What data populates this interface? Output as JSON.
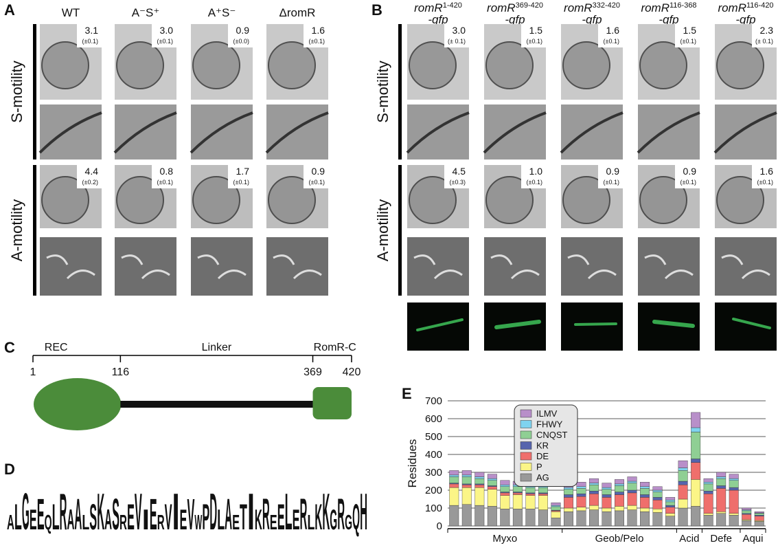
{
  "panel_a": {
    "label": "A",
    "columns": [
      "WT",
      "A⁻S⁺",
      "A⁺S⁻",
      "ΔromR"
    ],
    "rows": [
      {
        "label": "S-motility",
        "values": [
          "3.1",
          "3.0",
          "0.9",
          "1.6"
        ],
        "errors": [
          "(±0.1)",
          "(±0.1)",
          "(±0.0)",
          "(±0.1)"
        ]
      },
      {
        "label": "A-motility",
        "values": [
          "4.4",
          "0.8",
          "1.7",
          "0.9"
        ],
        "errors": [
          "(±0.2)",
          "(±0.1)",
          "(±0.1)",
          "(±0.1)"
        ]
      }
    ]
  },
  "panel_b": {
    "label": "B",
    "columns": [
      {
        "gene": "romR",
        "range": "1-420",
        "suffix": "-gfp"
      },
      {
        "gene": "romR",
        "range": "369-420",
        "suffix": "-gfp"
      },
      {
        "gene": "romR",
        "range": "332-420",
        "suffix": "-gfp"
      },
      {
        "gene": "romR",
        "range": "116-368",
        "suffix": "-gfp"
      },
      {
        "gene": "romR",
        "range": "116-420",
        "suffix": "-gfp"
      }
    ],
    "rows": [
      {
        "label": "S-motility",
        "values": [
          "3.0",
          "1.5",
          "1.6",
          "1.5",
          "2.3"
        ],
        "errors": [
          "(± 0.1)",
          "(±0.1)",
          "(±0.1)",
          "(±0.1)",
          "(± 0.1)"
        ]
      },
      {
        "label": "A-motility",
        "values": [
          "4.5",
          "1.0",
          "0.9",
          "0.9",
          "1.6"
        ],
        "errors": [
          "(±0.3)",
          "(±0.1)",
          "(±0.1)",
          "(±0.1)",
          "(±0.1)"
        ]
      }
    ]
  },
  "panel_c": {
    "label": "C",
    "domains": [
      "REC",
      "Linker",
      "RomR-C"
    ],
    "positions": [
      1,
      116,
      369,
      420
    ]
  },
  "panel_d": {
    "label": "D",
    "logo": "ALGEEQLRAALSKASREVIERVIEVWPDLAETIKREELERLKKGRGQH"
  },
  "chart_data": {
    "type": "bar",
    "stacked": true,
    "label": "E",
    "ylabel": "Residues",
    "ylim": [
      0,
      700
    ],
    "yticks": [
      0,
      100,
      200,
      300,
      400,
      500,
      600,
      700
    ],
    "grid": true,
    "categories": [
      null,
      null,
      null,
      null,
      null,
      null,
      null,
      null,
      null,
      null,
      null,
      null,
      null,
      null,
      null,
      null,
      null,
      null,
      null,
      null,
      null,
      null,
      null,
      null,
      null
    ],
    "groups": [
      {
        "label": "Myxo",
        "bars": 9
      },
      {
        "label": "Geob/Pelo",
        "bars": 9
      },
      {
        "label": "Acid",
        "bars": 2
      },
      {
        "label": "Defe",
        "bars": 3
      },
      {
        "label": "Aqui",
        "bars": 2
      }
    ],
    "series": [
      {
        "name": "AG",
        "color": "#999999",
        "values": [
          115,
          120,
          115,
          110,
          95,
          95,
          95,
          90,
          45,
          80,
          85,
          90,
          80,
          85,
          90,
          80,
          75,
          55,
          100,
          110,
          60,
          70,
          60,
          30,
          25
        ]
      },
      {
        "name": "P",
        "color": "#fbf587",
        "values": [
          100,
          95,
          100,
          95,
          75,
          80,
          75,
          80,
          35,
          20,
          20,
          25,
          20,
          25,
          25,
          20,
          20,
          15,
          50,
          150,
          10,
          10,
          10,
          5,
          5
        ]
      },
      {
        "name": "DE",
        "color": "#ef6f6c",
        "values": [
          20,
          15,
          15,
          15,
          15,
          10,
          10,
          10,
          5,
          60,
          60,
          65,
          60,
          65,
          70,
          60,
          50,
          35,
          80,
          95,
          110,
          130,
          130,
          30,
          25
        ]
      },
      {
        "name": "KR",
        "color": "#5664ad",
        "values": [
          5,
          5,
          5,
          5,
          5,
          5,
          5,
          5,
          3,
          15,
          15,
          15,
          15,
          15,
          15,
          15,
          15,
          10,
          20,
          20,
          15,
          15,
          15,
          5,
          5
        ]
      },
      {
        "name": "CNQST",
        "color": "#8fcf94",
        "values": [
          35,
          40,
          30,
          30,
          30,
          30,
          30,
          30,
          20,
          30,
          30,
          35,
          30,
          35,
          40,
          35,
          30,
          20,
          60,
          150,
          40,
          40,
          40,
          15,
          10
        ]
      },
      {
        "name": "FHWY",
        "color": "#7fd3ef",
        "values": [
          10,
          10,
          10,
          10,
          10,
          10,
          10,
          10,
          7,
          10,
          10,
          10,
          10,
          10,
          10,
          10,
          10,
          10,
          15,
          25,
          10,
          10,
          10,
          5,
          3
        ]
      },
      {
        "name": "ILMV",
        "color": "#b88fc9",
        "values": [
          25,
          25,
          25,
          25,
          25,
          20,
          20,
          20,
          15,
          25,
          25,
          25,
          25,
          25,
          25,
          25,
          20,
          15,
          40,
          85,
          20,
          25,
          25,
          10,
          7
        ]
      }
    ]
  }
}
